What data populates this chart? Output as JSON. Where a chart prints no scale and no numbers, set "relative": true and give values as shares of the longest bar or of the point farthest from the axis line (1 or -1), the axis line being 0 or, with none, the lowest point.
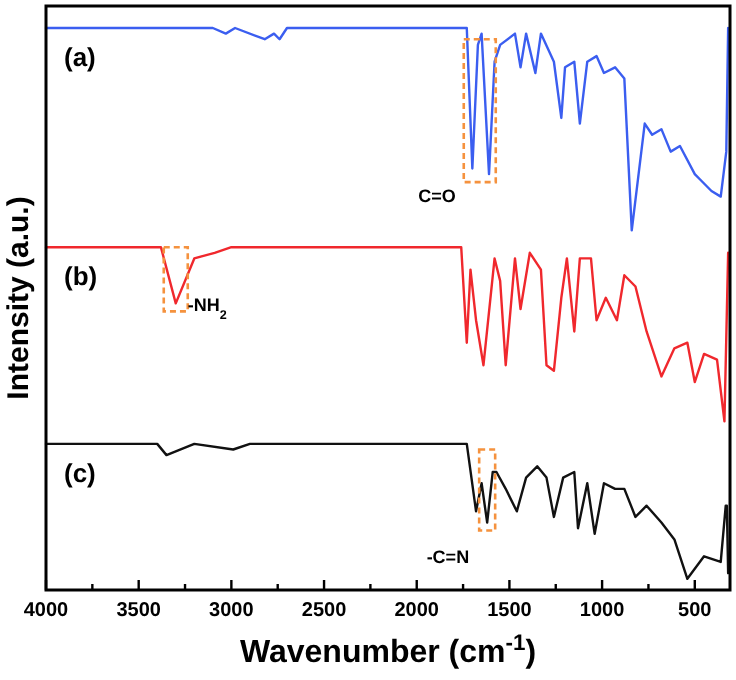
{
  "chart_data": {
    "type": "line",
    "relative": true,
    "xlabel": "Wavenumber (cm$^{-1}$)",
    "ylabel": "Intensity (a.u.)",
    "xlim": [
      4000,
      310
    ],
    "xticks": [
      4000,
      {
        "value": 3750,
        "label": null
      },
      3500,
      {
        "value": 3250,
        "label": null
      },
      3000,
      {
        "value": 2750,
        "label": null
      },
      2500,
      {
        "value": 2250,
        "label": null
      },
      2000,
      {
        "value": 1750,
        "label": null
      },
      1500,
      {
        "value": 1250,
        "label": null
      },
      1000,
      {
        "value": 750,
        "label": null
      },
      500
    ],
    "tick_labels": "x",
    "series": [
      {
        "color": "#3b5ef0",
        "x": [
          4000,
          3100,
          3030,
          2980,
          2820,
          2770,
          2740,
          2700,
          1730,
          1700,
          1670,
          1650,
          1610,
          1580,
          1550,
          1470,
          1440,
          1410,
          1360,
          1330,
          1260,
          1220,
          1200,
          1150,
          1120,
          1080,
          1030,
          990,
          930,
          880,
          840,
          770,
          730,
          680,
          630,
          580,
          500,
          470,
          410,
          360,
          330,
          320
        ],
        "values": [
          1.0,
          1.0,
          0.99,
          1.0,
          0.98,
          0.99,
          0.98,
          1.0,
          1.0,
          0.75,
          0.97,
          0.99,
          0.74,
          0.94,
          0.97,
          0.99,
          0.93,
          0.99,
          0.92,
          0.99,
          0.94,
          0.84,
          0.93,
          0.94,
          0.83,
          0.94,
          0.95,
          0.92,
          0.93,
          0.91,
          0.64,
          0.83,
          0.81,
          0.82,
          0.78,
          0.79,
          0.74,
          0.73,
          0.71,
          0.7,
          0.78,
          1.0
        ]
      },
      {
        "color": "#f0282d",
        "x": [
          4000,
          3380,
          3300,
          3200,
          3090,
          3000,
          1760,
          1730,
          1710,
          1680,
          1640,
          1580,
          1550,
          1520,
          1470,
          1440,
          1390,
          1330,
          1300,
          1260,
          1220,
          1190,
          1150,
          1120,
          1060,
          1030,
          980,
          920,
          880,
          820,
          760,
          680,
          610,
          540,
          500,
          450,
          380,
          340,
          320
        ],
        "values": [
          0.61,
          0.61,
          0.51,
          0.59,
          0.6,
          0.61,
          0.61,
          0.44,
          0.57,
          0.48,
          0.4,
          0.59,
          0.55,
          0.4,
          0.59,
          0.5,
          0.6,
          0.57,
          0.4,
          0.39,
          0.52,
          0.59,
          0.46,
          0.59,
          0.59,
          0.48,
          0.52,
          0.48,
          0.56,
          0.54,
          0.46,
          0.38,
          0.43,
          0.44,
          0.37,
          0.42,
          0.41,
          0.3,
          0.6
        ]
      },
      {
        "color": "#111111",
        "x": [
          4000,
          3400,
          3350,
          3200,
          2990,
          2900,
          1730,
          1680,
          1650,
          1620,
          1590,
          1570,
          1520,
          1460,
          1410,
          1350,
          1300,
          1260,
          1210,
          1150,
          1130,
          1080,
          1040,
          990,
          930,
          880,
          820,
          760,
          680,
          610,
          540,
          450,
          360,
          333,
          327,
          320
        ],
        "values": [
          0.26,
          0.26,
          0.24,
          0.26,
          0.25,
          0.26,
          0.26,
          0.14,
          0.19,
          0.12,
          0.21,
          0.21,
          0.18,
          0.14,
          0.2,
          0.22,
          0.2,
          0.13,
          0.2,
          0.21,
          0.11,
          0.19,
          0.1,
          0.19,
          0.18,
          0.18,
          0.13,
          0.15,
          0.12,
          0.09,
          0.02,
          0.06,
          0.05,
          0.15,
          0.15,
          0.03
        ]
      }
    ],
    "annotations": [
      "(a)",
      "(b)",
      "(c)",
      {
        "text": "C=O",
        "x": 1660,
        "y": 0.74
      },
      {
        "text": "-NH$_{2}$",
        "x": 3300,
        "y": 0.51
      },
      {
        "text": "-C=N",
        "x": 1620,
        "y": 0.12
      }
    ]
  }
}
